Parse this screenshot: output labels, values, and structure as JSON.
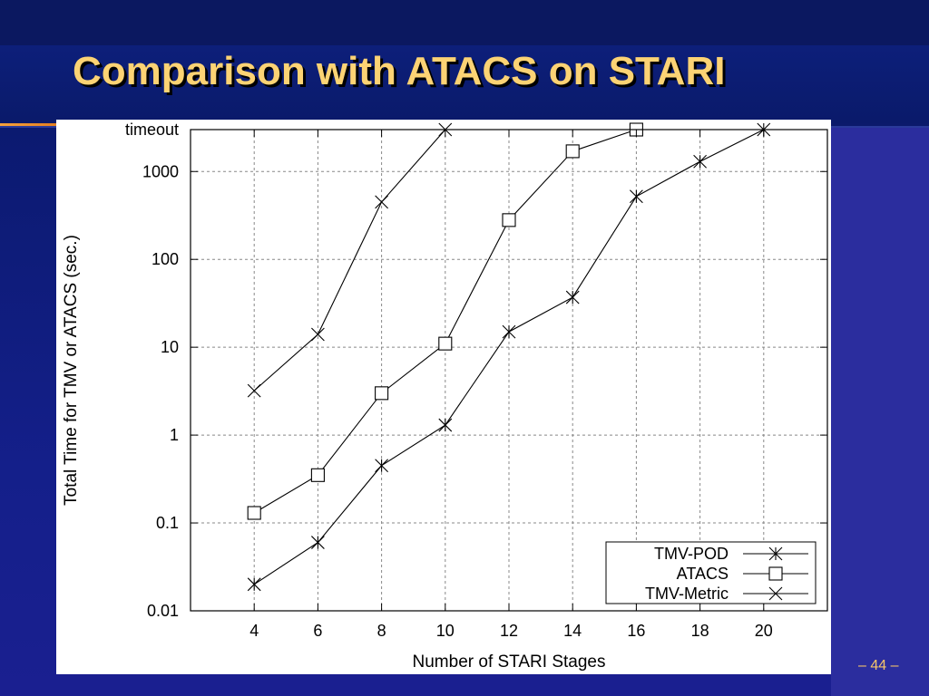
{
  "slide": {
    "title": "Comparison with ATACS on STARI",
    "page_label": "– 44 –"
  },
  "colors": {
    "title": "#fcd374",
    "background": "#0b1a6b",
    "accent": "#f6a23c",
    "page_number": "#f6c56a"
  },
  "chart_data": {
    "type": "line",
    "xlabel": "Number of STARI Stages",
    "ylabel": "Total Time for TMV or ATACS (sec.)",
    "x_scale": "linear",
    "y_scale": "log",
    "xlim": [
      2,
      22
    ],
    "ylim": [
      0.01,
      3000
    ],
    "xticks": [
      4,
      6,
      8,
      10,
      12,
      14,
      16,
      18,
      20
    ],
    "yticks": [
      {
        "value": 0.01,
        "label": "0.01"
      },
      {
        "value": 0.1,
        "label": "0.1"
      },
      {
        "value": 1,
        "label": "1"
      },
      {
        "value": 10,
        "label": "10"
      },
      {
        "value": 100,
        "label": "100"
      },
      {
        "value": 1000,
        "label": "1000"
      },
      {
        "value": 3000,
        "label": "timeout"
      }
    ],
    "grid": true,
    "legend_position": "bottom-right",
    "series": [
      {
        "name": "TMV-POD",
        "marker": "asterisk",
        "x": [
          4,
          6,
          8,
          10,
          12,
          14,
          16,
          18,
          20
        ],
        "y": [
          0.02,
          0.06,
          0.45,
          1.3,
          15,
          37,
          520,
          1300,
          3000
        ]
      },
      {
        "name": "ATACS",
        "marker": "square",
        "x": [
          4,
          6,
          8,
          10,
          12,
          14,
          16
        ],
        "y": [
          0.13,
          0.35,
          3,
          11,
          280,
          1700,
          3000
        ]
      },
      {
        "name": "TMV-Metric",
        "marker": "cross",
        "x": [
          4,
          6,
          8,
          10
        ],
        "y": [
          3.2,
          14,
          450,
          3000
        ]
      }
    ]
  }
}
